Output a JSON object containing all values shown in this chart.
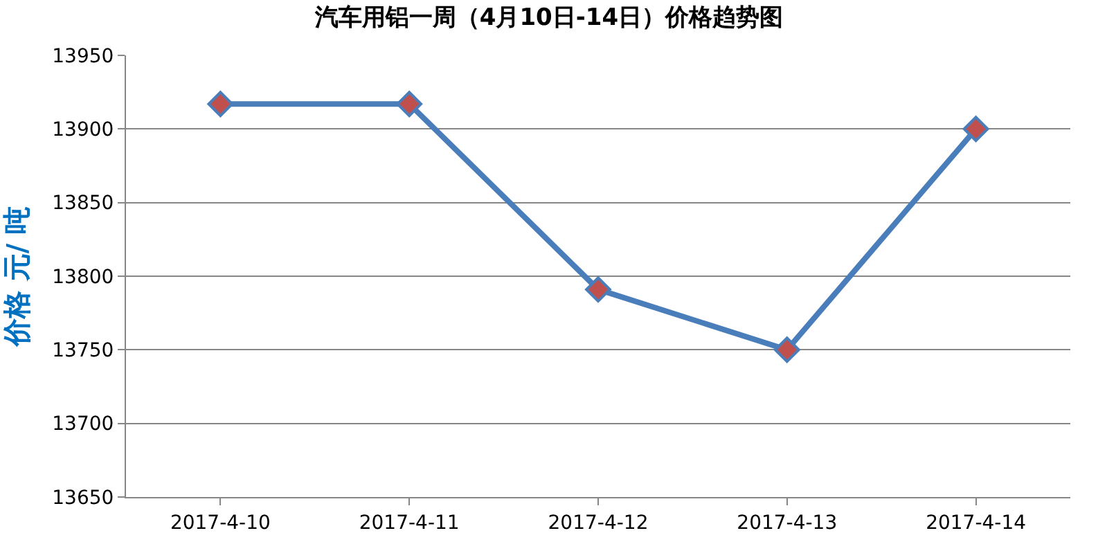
{
  "chart_data": {
    "type": "line",
    "title": "汽车用铝一周（4月10日-14日）价格趋势图",
    "ylabel": "价格 元/ 吨",
    "categories": [
      "2017-4-10",
      "2017-4-11",
      "2017-4-12",
      "2017-4-13",
      "2017-4-14"
    ],
    "series": [
      {
        "color": "#4a7ebb",
        "colors": [
          "#c0504d",
          "#c0504d",
          "#c0504d",
          "#c0504d",
          "#c0504d"
        ],
        "values": [
          13917,
          13917,
          13791,
          13750,
          13900
        ]
      }
    ],
    "ylim": [
      13650,
      13950
    ],
    "yticks": [
      13650,
      13700,
      13750,
      13800,
      13850,
      13900,
      13950
    ],
    "grid": "y",
    "marker": "diamond",
    "line_style": "solid"
  }
}
